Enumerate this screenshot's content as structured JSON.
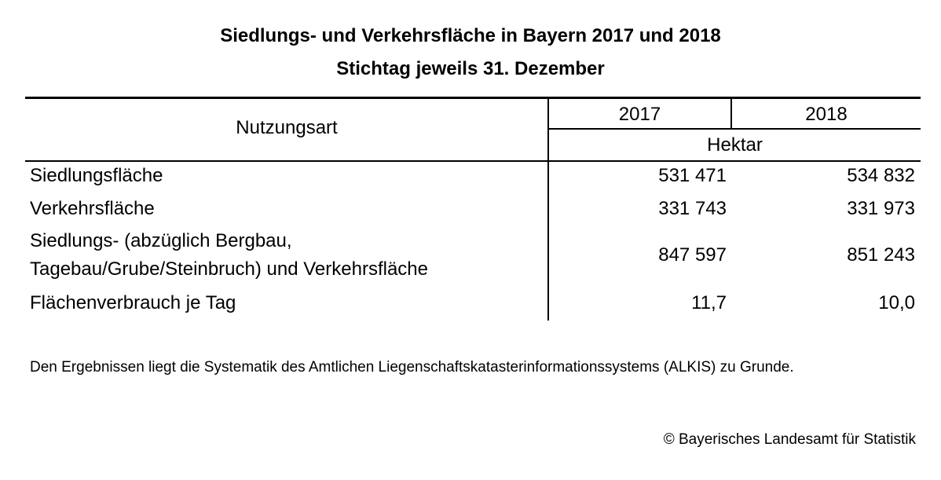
{
  "title": {
    "line1": "Siedlungs- und Verkehrsfläche in Bayern 2017 und 2018",
    "line2": "Stichtag jeweils 31. Dezember"
  },
  "table": {
    "header": {
      "column_label": "Nutzungsart",
      "years": [
        "2017",
        "2018"
      ],
      "unit": "Hektar"
    },
    "rows": [
      {
        "label": "Siedlungsfläche",
        "values": [
          "531 471",
          "534 832"
        ]
      },
      {
        "label": "Verkehrsfläche",
        "values": [
          "331 743",
          "331 973"
        ]
      },
      {
        "label_line1": "Siedlungs- (abzüglich Bergbau,",
        "label_line2": "Tagebau/Grube/Steinbruch) und Verkehrsfläche",
        "values": [
          "847 597",
          "851 243"
        ]
      },
      {
        "label": "Flächenverbrauch je Tag",
        "values": [
          "11,7",
          "10,0"
        ]
      }
    ]
  },
  "footnote": "Den Ergebnissen liegt die Systematik des Amtlichen Liegenschaftskatasterinformationssystems (ALKIS) zu Grunde.",
  "copyright": "© Bayerisches Landesamt für Statistik"
}
